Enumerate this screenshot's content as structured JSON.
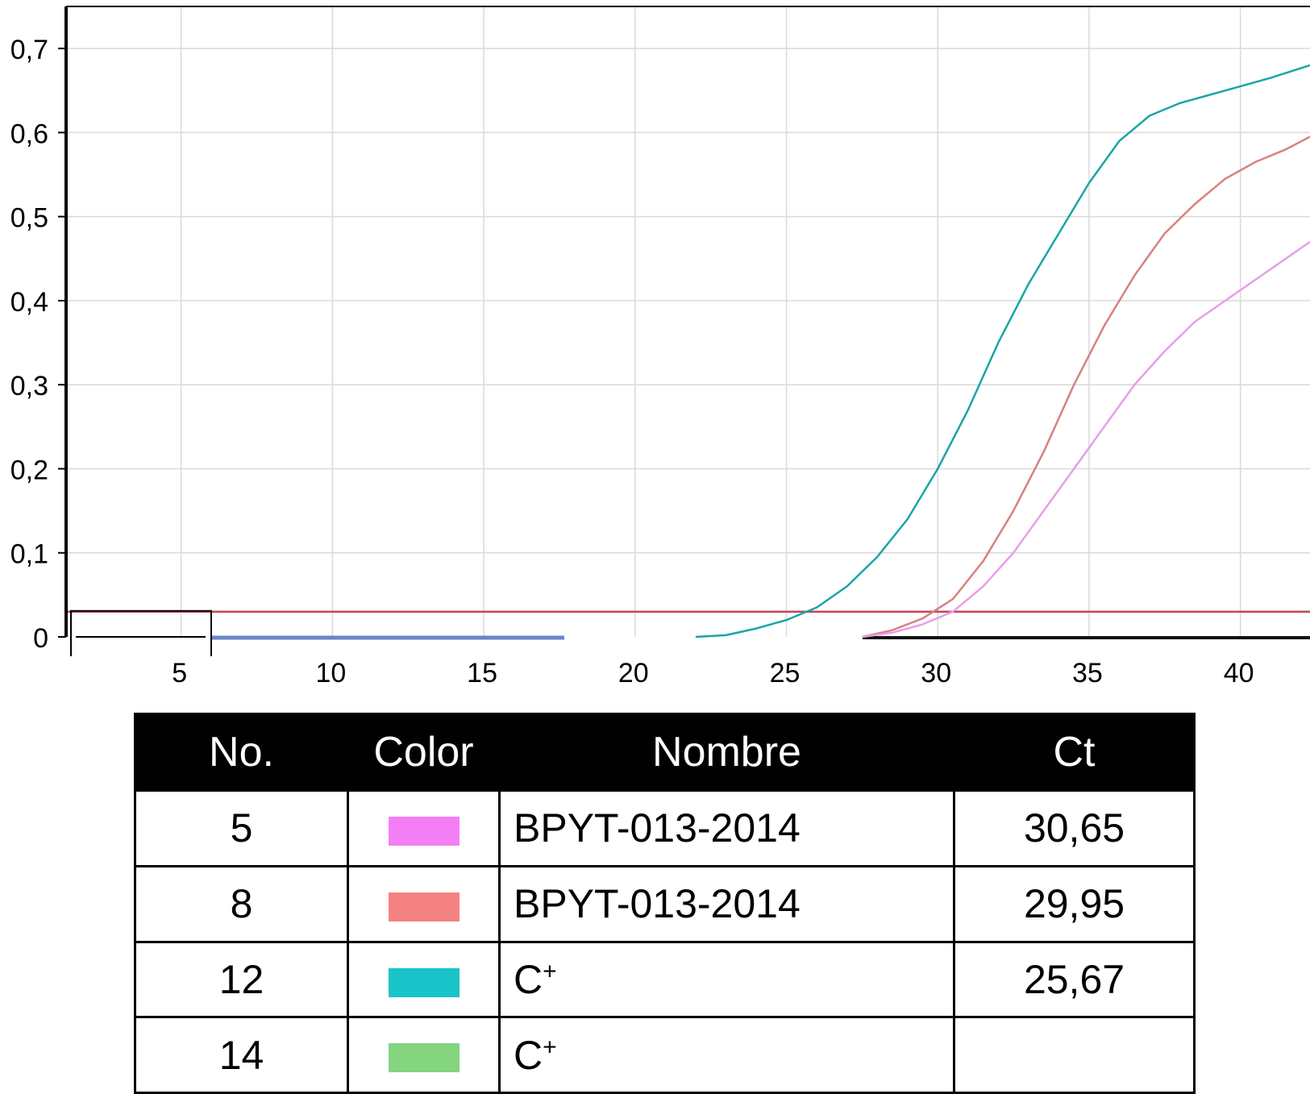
{
  "chart_data": {
    "type": "line",
    "title": "",
    "xlabel": "",
    "ylabel": "",
    "xlim": [
      1.2,
      42.3
    ],
    "ylim": [
      0,
      0.75
    ],
    "x_ticks": [
      {
        "value": 5,
        "label": "5"
      },
      {
        "value": 10,
        "label": "10"
      },
      {
        "value": 15,
        "label": "15"
      },
      {
        "value": 20,
        "label": "20"
      },
      {
        "value": 25,
        "label": "25"
      },
      {
        "value": 30,
        "label": "30"
      },
      {
        "value": 35,
        "label": "35"
      },
      {
        "value": 40,
        "label": "40"
      }
    ],
    "y_ticks": [
      {
        "value": 0,
        "label": "0"
      },
      {
        "value": 0.1,
        "label": "0,1"
      },
      {
        "value": 0.2,
        "label": "0,2"
      },
      {
        "value": 0.3,
        "label": "0,3"
      },
      {
        "value": 0.4,
        "label": "0,4"
      },
      {
        "value": 0.5,
        "label": "0,5"
      },
      {
        "value": 0.6,
        "label": "0,6"
      },
      {
        "value": 0.7,
        "label": "0,7"
      }
    ],
    "grid": true,
    "threshold": {
      "value": 0.03,
      "color": "#c0485a"
    },
    "series": [
      {
        "color": "#1aa5a5",
        "x": [
          22,
          23,
          24,
          25,
          26,
          27,
          28,
          29,
          30,
          31,
          32,
          33,
          34,
          35,
          36,
          37,
          38,
          39,
          40,
          41,
          42.3
        ],
        "y": [
          0.0,
          0.002,
          0.01,
          0.02,
          0.035,
          0.06,
          0.095,
          0.14,
          0.2,
          0.27,
          0.35,
          0.42,
          0.48,
          0.54,
          0.59,
          0.62,
          0.635,
          0.645,
          0.655,
          0.665,
          0.68
        ]
      },
      {
        "color": "#d98080",
        "x": [
          27.5,
          28.5,
          29.5,
          30.5,
          31.5,
          32.5,
          33.5,
          34.5,
          35.5,
          36.5,
          37.5,
          38.5,
          39.5,
          40.5,
          41.5,
          42.3
        ],
        "y": [
          0.0,
          0.008,
          0.022,
          0.045,
          0.09,
          0.15,
          0.22,
          0.3,
          0.37,
          0.43,
          0.48,
          0.515,
          0.545,
          0.565,
          0.58,
          0.595
        ]
      },
      {
        "color": "#e89de8",
        "x": [
          27.5,
          28.5,
          29.5,
          30.5,
          31.5,
          32.5,
          33.5,
          34.5,
          35.5,
          36.5,
          37.5,
          38.5,
          39.5,
          40.5,
          41.5,
          42.3
        ],
        "y": [
          0.0,
          0.005,
          0.015,
          0.03,
          0.06,
          0.1,
          0.15,
          0.2,
          0.25,
          0.3,
          0.34,
          0.375,
          0.4,
          0.425,
          0.45,
          0.47
        ]
      }
    ]
  },
  "legend_table": {
    "headers": {
      "no": "No.",
      "color": "Color",
      "name": "Nombre",
      "ct": "Ct"
    },
    "rows": [
      {
        "no": "5",
        "color": "#f47ff4",
        "name": "BPYT-013-2014",
        "sup": "",
        "ct": "30,65"
      },
      {
        "no": "8",
        "color": "#f58282",
        "name": "BPYT-013-2014",
        "sup": "",
        "ct": "29,95"
      },
      {
        "no": "12",
        "color": "#19c4c8",
        "name": "C",
        "sup": "+",
        "ct": "25,67"
      },
      {
        "no": "14",
        "color": "#84d480",
        "name": "C",
        "sup": "+",
        "ct": ""
      }
    ]
  }
}
